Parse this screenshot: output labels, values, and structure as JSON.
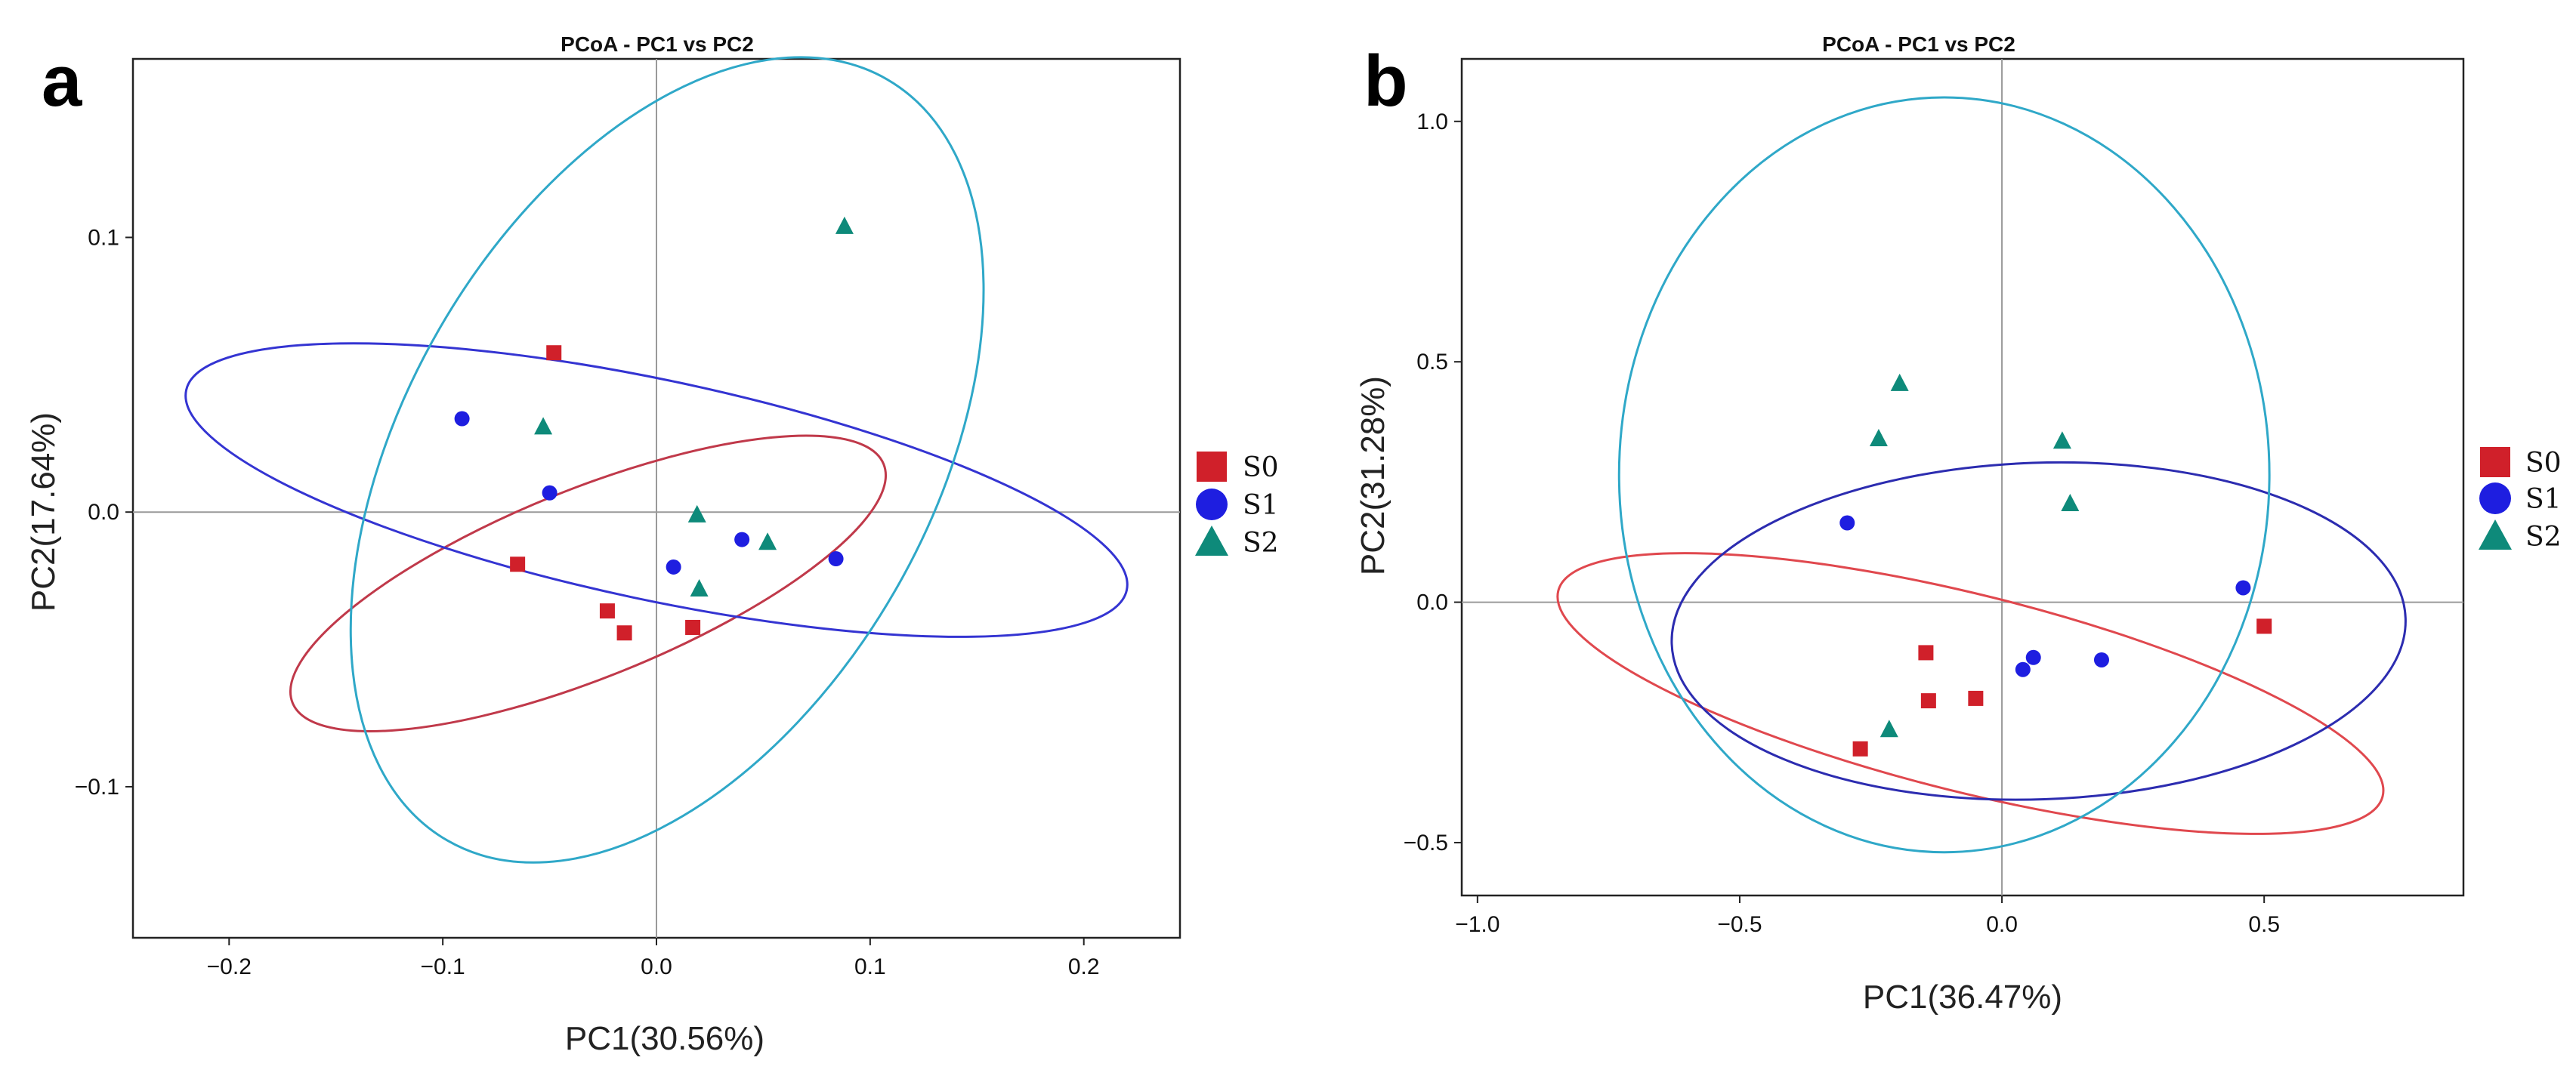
{
  "chart_data": [
    {
      "panel": "a",
      "type": "scatter",
      "title": "PCoA - PC1 vs PC2",
      "xlabel": "PC1(30.56%)",
      "ylabel": "PC2(17.64%)",
      "xlim": [
        -0.245,
        0.245
      ],
      "ylim": [
        -0.155,
        0.165
      ],
      "xticks": [
        -0.2,
        -0.1,
        0.0,
        0.1,
        0.2
      ],
      "xtick_labels": [
        "−0.2",
        "−0.1",
        "0.0",
        "0.1",
        "0.2"
      ],
      "yticks": [
        -0.1,
        0.0,
        0.1
      ],
      "ytick_labels": [
        "−0.1",
        "0.0",
        "0.1"
      ],
      "zero_lines": true,
      "series": [
        {
          "name": "S0",
          "marker": "square",
          "color": "#d0202a",
          "points": [
            [
              -0.048,
              0.058
            ],
            [
              -0.065,
              -0.019
            ],
            [
              -0.023,
              -0.036
            ],
            [
              -0.015,
              -0.044
            ],
            [
              0.017,
              -0.042
            ]
          ]
        },
        {
          "name": "S1",
          "marker": "circle",
          "color": "#1e1ee0",
          "points": [
            [
              -0.091,
              0.034
            ],
            [
              -0.05,
              0.007
            ],
            [
              0.008,
              -0.02
            ],
            [
              0.04,
              -0.01
            ],
            [
              0.084,
              -0.017
            ]
          ]
        },
        {
          "name": "S2",
          "marker": "triangle",
          "color": "#0e8a7a",
          "points": [
            [
              0.088,
              0.104
            ],
            [
              -0.053,
              0.031
            ],
            [
              0.019,
              -0.001
            ],
            [
              0.052,
              -0.011
            ],
            [
              0.02,
              -0.028
            ]
          ]
        }
      ],
      "ellipses": [
        {
          "group": "S0",
          "color": "#c0394a",
          "center": [
            -0.032,
            -0.026
          ],
          "semi_axes": [
            0.044,
            0.116
          ],
          "angle_deg": 68
        },
        {
          "group": "S1",
          "color": "#3434d2",
          "center": [
            0.0,
            0.008
          ],
          "semi_axes": [
            0.225,
            0.04
          ],
          "angle_deg": 12
        },
        {
          "group": "S2",
          "color": "#2fa8c8",
          "center": [
            0.005,
            0.019
          ],
          "semi_axes": [
            0.123,
            0.16
          ],
          "angle_deg": 30
        }
      ],
      "legend": [
        "S0",
        "S1",
        "S2"
      ],
      "legend_position": "right"
    },
    {
      "panel": "b",
      "type": "scatter",
      "title": "PCoA - PC1 vs PC2",
      "xlabel": "PC1(36.47%)",
      "ylabel": "PC2(31.28%)",
      "xlim": [
        -1.03,
        0.88
      ],
      "ylim": [
        -0.61,
        1.13
      ],
      "xticks": [
        -1.0,
        -0.5,
        0.0,
        0.5
      ],
      "xtick_labels": [
        "−1.0",
        "−0.5",
        "0.0",
        "0.5"
      ],
      "yticks": [
        -0.5,
        0.0,
        0.5,
        1.0
      ],
      "ytick_labels": [
        "−0.5",
        "0.0",
        "0.5",
        "1.0"
      ],
      "zero_lines": true,
      "series": [
        {
          "name": "S0",
          "marker": "square",
          "color": "#d0202a",
          "points": [
            [
              -0.145,
              -0.105
            ],
            [
              -0.14,
              -0.205
            ],
            [
              -0.05,
              -0.2
            ],
            [
              -0.27,
              -0.305
            ],
            [
              0.5,
              -0.05
            ]
          ]
        },
        {
          "name": "S1",
          "marker": "circle",
          "color": "#1e1ee0",
          "points": [
            [
              -0.295,
              0.165
            ],
            [
              0.04,
              -0.14
            ],
            [
              0.06,
              -0.115
            ],
            [
              0.19,
              -0.12
            ],
            [
              0.46,
              0.03
            ]
          ]
        },
        {
          "name": "S2",
          "marker": "triangle",
          "color": "#0e8a7a",
          "points": [
            [
              -0.195,
              0.455
            ],
            [
              -0.235,
              0.34
            ],
            [
              -0.215,
              -0.265
            ],
            [
              0.115,
              0.335
            ],
            [
              0.13,
              0.205
            ]
          ]
        }
      ],
      "ellipses": [
        {
          "group": "S0",
          "color": "#e0484e",
          "center": [
            -0.06,
            -0.19
          ],
          "semi_axes": [
            0.81,
            0.205
          ],
          "angle_deg": 14
        },
        {
          "group": "S1",
          "color": "#2c2cb0",
          "center": [
            0.07,
            -0.06
          ],
          "semi_axes": [
            0.7,
            0.35
          ],
          "angle_deg": -2
        },
        {
          "group": "S2",
          "color": "#2fa8c8",
          "center": [
            -0.11,
            0.265
          ],
          "semi_axes": [
            0.62,
            0.785
          ],
          "angle_deg": 0
        }
      ],
      "legend": [
        "S0",
        "S1",
        "S2"
      ],
      "legend_position": "right"
    }
  ]
}
